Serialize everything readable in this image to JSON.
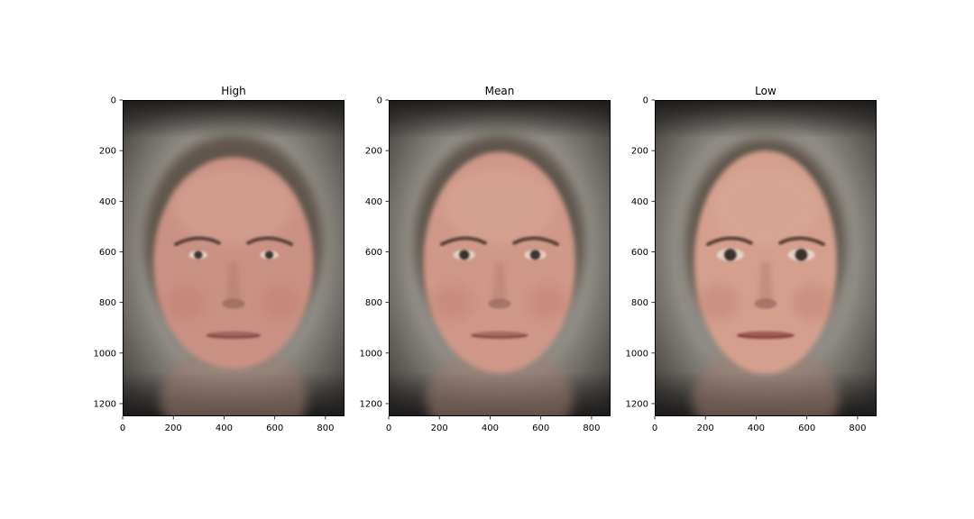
{
  "chart_data": [
    {
      "type": "image",
      "title": "High",
      "image_extent": {
        "width": 875,
        "height": 1250
      },
      "xlim": [
        0,
        875
      ],
      "ylim": [
        1250,
        0
      ],
      "y_inverted": true,
      "xticks": [
        0,
        200,
        400,
        600,
        800
      ],
      "yticks": [
        0,
        200,
        400,
        600,
        800,
        1000,
        1200
      ],
      "xtick_labels": [
        "0",
        "200",
        "400",
        "600",
        "800"
      ],
      "ytick_labels": [
        "0",
        "200",
        "400",
        "600",
        "800",
        "1000",
        "1200"
      ],
      "xlabel": "",
      "ylabel": "",
      "grid": false,
      "face_variant": "high"
    },
    {
      "type": "image",
      "title": "Mean",
      "image_extent": {
        "width": 875,
        "height": 1250
      },
      "xlim": [
        0,
        875
      ],
      "ylim": [
        1250,
        0
      ],
      "y_inverted": true,
      "xticks": [
        0,
        200,
        400,
        600,
        800
      ],
      "yticks": [
        0,
        200,
        400,
        600,
        800,
        1000,
        1200
      ],
      "xtick_labels": [
        "0",
        "200",
        "400",
        "600",
        "800"
      ],
      "ytick_labels": [
        "0",
        "200",
        "400",
        "600",
        "800",
        "1000",
        "1200"
      ],
      "xlabel": "",
      "ylabel": "",
      "grid": false,
      "face_variant": "mean"
    },
    {
      "type": "image",
      "title": "Low",
      "image_extent": {
        "width": 875,
        "height": 1250
      },
      "xlim": [
        0,
        875
      ],
      "ylim": [
        1250,
        0
      ],
      "y_inverted": true,
      "xticks": [
        0,
        200,
        400,
        600,
        800
      ],
      "yticks": [
        0,
        200,
        400,
        600,
        800,
        1000,
        1200
      ],
      "xtick_labels": [
        "0",
        "200",
        "400",
        "600",
        "800"
      ],
      "ytick_labels": [
        "0",
        "200",
        "400",
        "600",
        "800",
        "1000",
        "1200"
      ],
      "xlabel": "",
      "ylabel": "",
      "grid": false,
      "face_variant": "low"
    }
  ],
  "colors": {
    "background": "#ffffff",
    "axes_edge": "#000000",
    "text": "#000000",
    "image_background_light": "#a09c96",
    "image_background_dark": "#2a2826",
    "skin_high": "#c99183",
    "skin_mean": "#cf9888",
    "skin_low": "#d4a08d",
    "hair": "#5e544c",
    "eye": "#3a302c",
    "lip_high": "#a0655e",
    "lip_mean": "#a86b62",
    "lip_low": "#a05a58"
  }
}
